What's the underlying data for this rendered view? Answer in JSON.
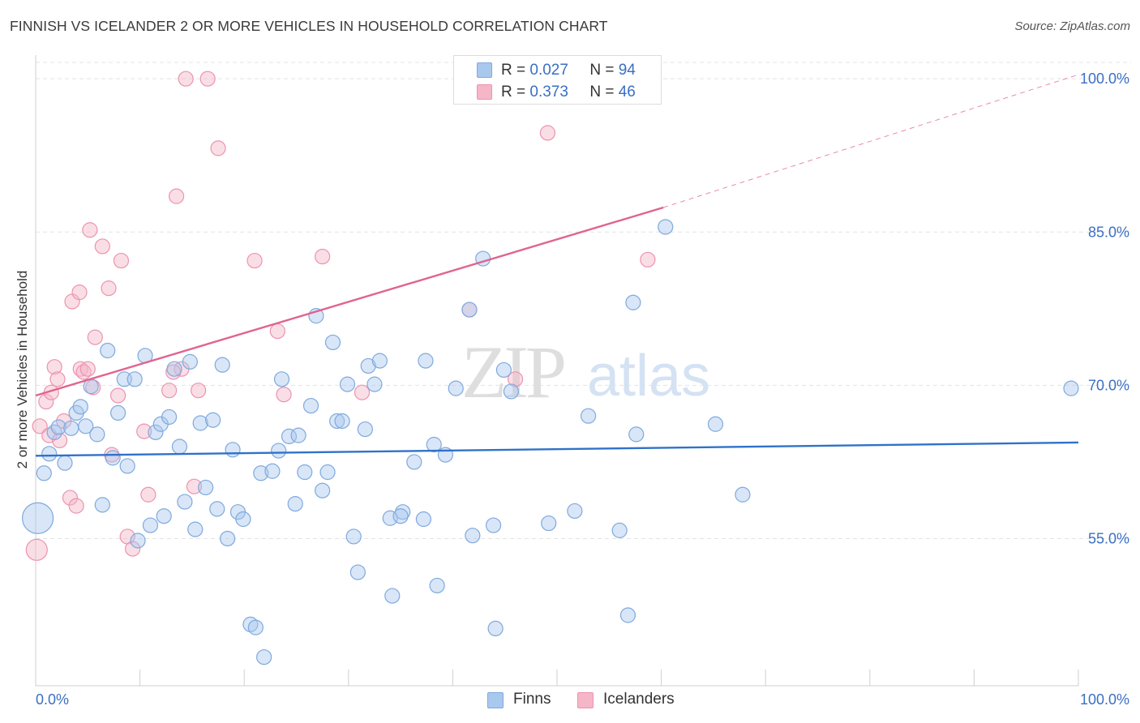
{
  "header": {
    "title": "FINNISH VS ICELANDER 2 OR MORE VEHICLES IN HOUSEHOLD CORRELATION CHART",
    "source": "Source: ZipAtlas.com"
  },
  "colors": {
    "finns_fill": "#a9c8ee",
    "finns_stroke": "#7fa9de",
    "finns_line": "#2f72c9",
    "icelanders_fill": "#f5b6c8",
    "icelanders_stroke": "#ec93ae",
    "icelanders_line": "#e0648f",
    "axis_text": "#3a6fc4",
    "grid": "#e3e3e3"
  },
  "legend_top": {
    "finns": {
      "r_label": "R =",
      "r_value": "0.027",
      "n_label": "N =",
      "n_value": "94"
    },
    "icelanders": {
      "r_label": "R =",
      "r_value": "0.373",
      "n_label": "N =",
      "n_value": "46"
    }
  },
  "bottom_legend": {
    "finns": "Finns",
    "icelanders": "Icelanders"
  },
  "watermark": {
    "zip": "ZIP",
    "atlas": "atlas"
  },
  "chart_data": {
    "type": "scatter",
    "title": "FINNISH VS ICELANDER 2 OR MORE VEHICLES IN HOUSEHOLD CORRELATION CHART",
    "xlabel": "",
    "ylabel": "2 or more Vehicles in Household",
    "xlim": [
      0,
      100
    ],
    "ylim": [
      40.6,
      101.6
    ],
    "x_tick_labels": [
      "0.0%",
      "100.0%"
    ],
    "y_ticks": [
      55,
      70,
      85,
      100
    ],
    "y_tick_labels": [
      "55.0%",
      "70.0%",
      "85.0%",
      "100.0%"
    ],
    "grid": true,
    "legend_position": "top-center",
    "series": [
      {
        "name": "Finns",
        "r": 0.027,
        "n": 94,
        "trend": {
          "x": [
            0,
            100
          ],
          "y": [
            63.1,
            64.4
          ]
        },
        "points": [
          {
            "x": 0.2,
            "y": 57.0,
            "s": 3
          },
          {
            "x": 0.8,
            "y": 61.4,
            "s": 1
          },
          {
            "x": 1.3,
            "y": 63.3,
            "s": 1
          },
          {
            "x": 1.8,
            "y": 65.4,
            "s": 1
          },
          {
            "x": 2.2,
            "y": 65.9,
            "s": 1
          },
          {
            "x": 2.8,
            "y": 62.4,
            "s": 1
          },
          {
            "x": 3.4,
            "y": 65.8,
            "s": 1
          },
          {
            "x": 3.9,
            "y": 67.3,
            "s": 1
          },
          {
            "x": 4.3,
            "y": 67.9,
            "s": 1
          },
          {
            "x": 4.8,
            "y": 66.0,
            "s": 1
          },
          {
            "x": 5.3,
            "y": 69.9,
            "s": 1
          },
          {
            "x": 5.9,
            "y": 65.2,
            "s": 1
          },
          {
            "x": 6.4,
            "y": 58.3,
            "s": 1
          },
          {
            "x": 6.9,
            "y": 73.4,
            "s": 1
          },
          {
            "x": 7.4,
            "y": 62.9,
            "s": 1
          },
          {
            "x": 7.9,
            "y": 67.3,
            "s": 1
          },
          {
            "x": 8.5,
            "y": 70.6,
            "s": 1
          },
          {
            "x": 8.8,
            "y": 62.1,
            "s": 1
          },
          {
            "x": 9.5,
            "y": 70.6,
            "s": 1
          },
          {
            "x": 9.8,
            "y": 54.8,
            "s": 1
          },
          {
            "x": 10.5,
            "y": 72.9,
            "s": 1
          },
          {
            "x": 11.0,
            "y": 56.3,
            "s": 1
          },
          {
            "x": 11.5,
            "y": 65.4,
            "s": 1
          },
          {
            "x": 12.0,
            "y": 66.2,
            "s": 1
          },
          {
            "x": 12.3,
            "y": 57.2,
            "s": 1
          },
          {
            "x": 12.8,
            "y": 66.9,
            "s": 1
          },
          {
            "x": 13.3,
            "y": 71.6,
            "s": 1
          },
          {
            "x": 13.8,
            "y": 64.0,
            "s": 1
          },
          {
            "x": 14.3,
            "y": 58.6,
            "s": 1
          },
          {
            "x": 14.8,
            "y": 72.3,
            "s": 1
          },
          {
            "x": 15.3,
            "y": 55.9,
            "s": 1
          },
          {
            "x": 15.8,
            "y": 66.3,
            "s": 1
          },
          {
            "x": 16.3,
            "y": 60.0,
            "s": 1
          },
          {
            "x": 17.0,
            "y": 66.6,
            "s": 1
          },
          {
            "x": 17.4,
            "y": 57.9,
            "s": 1
          },
          {
            "x": 17.9,
            "y": 72.0,
            "s": 1
          },
          {
            "x": 18.4,
            "y": 55.0,
            "s": 1
          },
          {
            "x": 18.9,
            "y": 63.7,
            "s": 1
          },
          {
            "x": 19.4,
            "y": 57.6,
            "s": 1
          },
          {
            "x": 19.9,
            "y": 56.9,
            "s": 1
          },
          {
            "x": 20.6,
            "y": 46.6,
            "s": 1
          },
          {
            "x": 21.1,
            "y": 46.3,
            "s": 1
          },
          {
            "x": 21.6,
            "y": 61.4,
            "s": 1
          },
          {
            "x": 21.9,
            "y": 43.4,
            "s": 1
          },
          {
            "x": 22.7,
            "y": 61.6,
            "s": 1
          },
          {
            "x": 23.3,
            "y": 63.6,
            "s": 1
          },
          {
            "x": 23.6,
            "y": 70.6,
            "s": 1
          },
          {
            "x": 24.3,
            "y": 65.0,
            "s": 1
          },
          {
            "x": 24.9,
            "y": 58.4,
            "s": 1
          },
          {
            "x": 25.2,
            "y": 65.1,
            "s": 1
          },
          {
            "x": 25.8,
            "y": 61.5,
            "s": 1
          },
          {
            "x": 26.4,
            "y": 68.0,
            "s": 1
          },
          {
            "x": 26.9,
            "y": 76.8,
            "s": 1
          },
          {
            "x": 27.5,
            "y": 59.7,
            "s": 1
          },
          {
            "x": 28.0,
            "y": 61.5,
            "s": 1
          },
          {
            "x": 28.5,
            "y": 74.2,
            "s": 1
          },
          {
            "x": 28.9,
            "y": 66.5,
            "s": 1
          },
          {
            "x": 29.4,
            "y": 66.5,
            "s": 1
          },
          {
            "x": 29.9,
            "y": 70.1,
            "s": 1
          },
          {
            "x": 30.5,
            "y": 55.2,
            "s": 1
          },
          {
            "x": 30.9,
            "y": 51.7,
            "s": 1
          },
          {
            "x": 31.6,
            "y": 65.7,
            "s": 1
          },
          {
            "x": 31.9,
            "y": 71.9,
            "s": 1
          },
          {
            "x": 32.5,
            "y": 70.1,
            "s": 1
          },
          {
            "x": 33.0,
            "y": 72.4,
            "s": 1
          },
          {
            "x": 34.0,
            "y": 57.0,
            "s": 1
          },
          {
            "x": 34.2,
            "y": 49.4,
            "s": 1
          },
          {
            "x": 35.2,
            "y": 57.6,
            "s": 1
          },
          {
            "x": 35.0,
            "y": 57.2,
            "s": 1
          },
          {
            "x": 37.4,
            "y": 72.4,
            "s": 1
          },
          {
            "x": 37.2,
            "y": 56.9,
            "s": 1
          },
          {
            "x": 38.2,
            "y": 64.2,
            "s": 1
          },
          {
            "x": 38.5,
            "y": 50.4,
            "s": 1
          },
          {
            "x": 39.3,
            "y": 63.2,
            "s": 1
          },
          {
            "x": 40.3,
            "y": 69.7,
            "s": 1
          },
          {
            "x": 41.6,
            "y": 77.4,
            "s": 1
          },
          {
            "x": 41.9,
            "y": 55.3,
            "s": 1
          },
          {
            "x": 42.9,
            "y": 82.4,
            "s": 1
          },
          {
            "x": 43.9,
            "y": 56.3,
            "s": 1
          },
          {
            "x": 44.1,
            "y": 46.2,
            "s": 1
          },
          {
            "x": 44.9,
            "y": 71.5,
            "s": 1
          },
          {
            "x": 45.6,
            "y": 69.4,
            "s": 1
          },
          {
            "x": 36.3,
            "y": 62.5,
            "s": 1
          },
          {
            "x": 49.2,
            "y": 56.5,
            "s": 1
          },
          {
            "x": 51.7,
            "y": 57.7,
            "s": 1
          },
          {
            "x": 53.0,
            "y": 67.0,
            "s": 1
          },
          {
            "x": 56.0,
            "y": 55.8,
            "s": 1
          },
          {
            "x": 56.8,
            "y": 47.5,
            "s": 1
          },
          {
            "x": 57.3,
            "y": 78.1,
            "s": 1
          },
          {
            "x": 57.6,
            "y": 65.2,
            "s": 1
          },
          {
            "x": 60.4,
            "y": 85.5,
            "s": 1
          },
          {
            "x": 65.2,
            "y": 66.2,
            "s": 1
          },
          {
            "x": 67.8,
            "y": 59.3,
            "s": 1
          },
          {
            "x": 99.3,
            "y": 69.7,
            "s": 1
          }
        ]
      },
      {
        "name": "Icelanders",
        "r": 0.373,
        "n": 46,
        "trend": {
          "x": [
            0,
            60.2
          ],
          "y": [
            69.0,
            87.4
          ]
        },
        "trend_dashed": {
          "x": [
            60.2,
            100
          ],
          "y": [
            87.4,
            100.4
          ]
        },
        "points": [
          {
            "x": 0.1,
            "y": 53.9,
            "s": 2
          },
          {
            "x": 0.4,
            "y": 66.0,
            "s": 1
          },
          {
            "x": 1.0,
            "y": 68.4,
            "s": 1
          },
          {
            "x": 1.3,
            "y": 65.1,
            "s": 1
          },
          {
            "x": 1.5,
            "y": 69.3,
            "s": 1
          },
          {
            "x": 1.8,
            "y": 71.8,
            "s": 1
          },
          {
            "x": 2.1,
            "y": 70.6,
            "s": 1
          },
          {
            "x": 2.3,
            "y": 64.6,
            "s": 1
          },
          {
            "x": 2.7,
            "y": 66.5,
            "s": 1
          },
          {
            "x": 3.3,
            "y": 59.0,
            "s": 1
          },
          {
            "x": 3.5,
            "y": 78.2,
            "s": 1
          },
          {
            "x": 3.9,
            "y": 58.2,
            "s": 1
          },
          {
            "x": 4.2,
            "y": 79.1,
            "s": 1
          },
          {
            "x": 4.3,
            "y": 71.6,
            "s": 1
          },
          {
            "x": 4.6,
            "y": 71.3,
            "s": 1
          },
          {
            "x": 5.0,
            "y": 71.6,
            "s": 1
          },
          {
            "x": 5.2,
            "y": 85.2,
            "s": 1
          },
          {
            "x": 5.5,
            "y": 69.8,
            "s": 1
          },
          {
            "x": 5.7,
            "y": 74.7,
            "s": 1
          },
          {
            "x": 6.4,
            "y": 83.6,
            "s": 1
          },
          {
            "x": 7.0,
            "y": 79.5,
            "s": 1
          },
          {
            "x": 7.3,
            "y": 63.2,
            "s": 1
          },
          {
            "x": 7.9,
            "y": 69.0,
            "s": 1
          },
          {
            "x": 8.2,
            "y": 82.2,
            "s": 1
          },
          {
            "x": 8.8,
            "y": 55.2,
            "s": 1
          },
          {
            "x": 9.3,
            "y": 54.0,
            "s": 1
          },
          {
            "x": 10.4,
            "y": 65.5,
            "s": 1
          },
          {
            "x": 10.8,
            "y": 59.3,
            "s": 1
          },
          {
            "x": 12.8,
            "y": 69.5,
            "s": 1
          },
          {
            "x": 13.5,
            "y": 88.5,
            "s": 1
          },
          {
            "x": 14.0,
            "y": 71.6,
            "s": 1
          },
          {
            "x": 14.4,
            "y": 100.0,
            "s": 1
          },
          {
            "x": 15.2,
            "y": 60.1,
            "s": 1
          },
          {
            "x": 15.6,
            "y": 69.5,
            "s": 1
          },
          {
            "x": 16.5,
            "y": 100.0,
            "s": 1
          },
          {
            "x": 17.5,
            "y": 93.2,
            "s": 1
          },
          {
            "x": 21.0,
            "y": 82.2,
            "s": 1
          },
          {
            "x": 23.2,
            "y": 75.3,
            "s": 1
          },
          {
            "x": 23.8,
            "y": 69.1,
            "s": 1
          },
          {
            "x": 27.5,
            "y": 82.6,
            "s": 1
          },
          {
            "x": 31.3,
            "y": 69.3,
            "s": 1
          },
          {
            "x": 41.6,
            "y": 77.4,
            "s": 1
          },
          {
            "x": 46.0,
            "y": 70.6,
            "s": 1
          },
          {
            "x": 49.1,
            "y": 94.7,
            "s": 1
          },
          {
            "x": 58.7,
            "y": 82.3,
            "s": 1
          },
          {
            "x": 13.2,
            "y": 71.3,
            "s": 1
          }
        ]
      }
    ]
  }
}
